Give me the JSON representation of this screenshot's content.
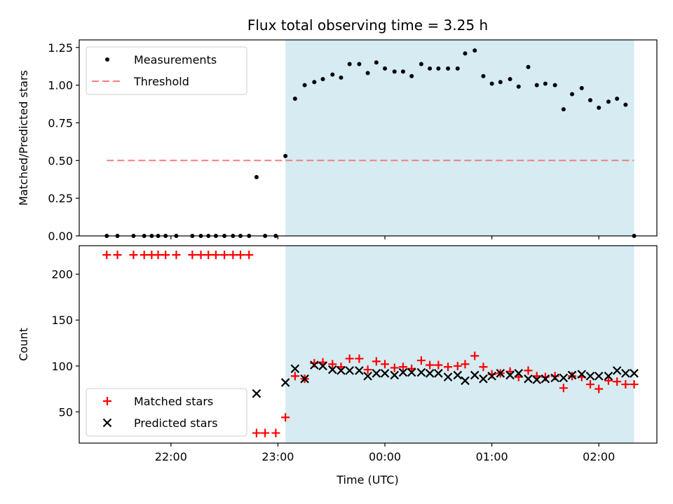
{
  "chart_data": {
    "title": "Flux total observing time = 3.25 h",
    "xlabel": "Time (UTC)",
    "x_unit": "hours since 00:00 UTC (negative = previous day)",
    "xlim": [
      -2.8575,
      2.5425
    ],
    "xticks": [
      -2.0,
      -1.0,
      0.0,
      1.0,
      2.0
    ],
    "xtick_labels": [
      "22:00",
      "23:00",
      "00:00",
      "01:00",
      "02:00"
    ],
    "shaded_interval": {
      "x": [
        -0.93,
        2.33
      ],
      "color": "#add8e6"
    },
    "panels": [
      {
        "type": "scatter",
        "ylabel": "Matched/Predicted stars",
        "ylim": [
          0,
          1.3
        ],
        "yticks": [
          0.0,
          0.25,
          0.5,
          0.75,
          1.0,
          1.25
        ],
        "ytick_labels": [
          "0.00",
          "0.25",
          "0.50",
          "0.75",
          "1.00",
          "1.25"
        ],
        "legend": {
          "location": "upper left",
          "entries": [
            "Measurements",
            "Threshold"
          ]
        },
        "threshold": {
          "name": "Threshold",
          "value": 0.5,
          "x": [
            -2.6,
            2.33
          ],
          "color": "#f08080",
          "style": "dashed"
        },
        "series": [
          {
            "name": "Measurements",
            "marker": "dot",
            "color": "#000000",
            "x": [
              -2.6,
              -2.5,
              -2.35,
              -2.25,
              -2.18,
              -2.12,
              -2.05,
              -1.95,
              -1.8,
              -1.72,
              -1.65,
              -1.58,
              -1.5,
              -1.42,
              -1.35,
              -1.27,
              -1.2,
              -1.12,
              -1.02,
              -0.93,
              -0.84,
              -0.75,
              -0.66,
              -0.58,
              -0.49,
              -0.41,
              -0.33,
              -0.24,
              -0.16,
              -0.08,
              0.0,
              0.09,
              0.17,
              0.25,
              0.34,
              0.42,
              0.5,
              0.59,
              0.68,
              0.75,
              0.84,
              0.92,
              1.0,
              1.08,
              1.17,
              1.25,
              1.34,
              1.42,
              1.5,
              1.59,
              1.67,
              1.75,
              1.84,
              1.92,
              2.0,
              2.09,
              2.17,
              2.25,
              2.33
            ],
            "values": [
              0.0,
              0.0,
              0.0,
              0.0,
              0.0,
              0.0,
              0.0,
              0.0,
              0.0,
              0.0,
              0.0,
              0.0,
              0.0,
              0.0,
              0.0,
              0.0,
              0.39,
              0.0,
              0.0,
              0.53,
              0.91,
              1.0,
              1.02,
              1.04,
              1.07,
              1.05,
              1.14,
              1.14,
              1.08,
              1.15,
              1.11,
              1.09,
              1.09,
              1.06,
              1.14,
              1.11,
              1.11,
              1.11,
              1.11,
              1.21,
              1.23,
              1.06,
              1.01,
              1.02,
              1.04,
              0.99,
              1.12,
              1.0,
              1.01,
              1.0,
              0.84,
              0.94,
              0.98,
              0.9,
              0.85,
              0.89,
              0.91,
              0.87,
              0.0
            ]
          }
        ]
      },
      {
        "type": "scatter",
        "ylabel": "Count",
        "ylim": [
          16,
          231
        ],
        "yticks": [
          50,
          100,
          150,
          200
        ],
        "ytick_labels": [
          "50",
          "100",
          "150",
          "200"
        ],
        "legend": {
          "location": "lower left",
          "entries": [
            "Matched stars",
            "Predicted stars"
          ]
        },
        "series": [
          {
            "name": "Matched stars",
            "marker": "plus",
            "color": "#ff0000",
            "x": [
              -2.6,
              -2.5,
              -2.35,
              -2.25,
              -2.18,
              -2.12,
              -2.05,
              -1.95,
              -1.8,
              -1.72,
              -1.65,
              -1.58,
              -1.5,
              -1.42,
              -1.35,
              -1.27,
              -1.2,
              -1.12,
              -1.02,
              -0.93,
              -0.84,
              -0.75,
              -0.66,
              -0.58,
              -0.49,
              -0.41,
              -0.33,
              -0.24,
              -0.16,
              -0.08,
              0.0,
              0.09,
              0.17,
              0.25,
              0.34,
              0.42,
              0.5,
              0.59,
              0.68,
              0.75,
              0.84,
              0.92,
              1.0,
              1.08,
              1.17,
              1.25,
              1.34,
              1.42,
              1.5,
              1.59,
              1.67,
              1.75,
              1.84,
              1.92,
              2.0,
              2.09,
              2.17,
              2.25,
              2.33
            ],
            "values": [
              221,
              221,
              221,
              221,
              221,
              221,
              221,
              221,
              221,
              221,
              221,
              221,
              221,
              221,
              221,
              221,
              27,
              27,
              27,
              44,
              89,
              86,
              103,
              104,
              102,
              99,
              108,
              108,
              96,
              105,
              102,
              98,
              99,
              97,
              106,
              101,
              101,
              99,
              100,
              102,
              111,
              99,
              91,
              92,
              94,
              88,
              95,
              89,
              88,
              89,
              76,
              89,
              88,
              80,
              75,
              84,
              83,
              80,
              80
            ]
          },
          {
            "name": "Predicted stars",
            "marker": "cross",
            "color": "#000000",
            "x": [
              -1.2,
              -0.93,
              -0.84,
              -0.75,
              -0.66,
              -0.58,
              -0.49,
              -0.41,
              -0.33,
              -0.24,
              -0.16,
              -0.08,
              0.0,
              0.09,
              0.17,
              0.25,
              0.34,
              0.42,
              0.5,
              0.59,
              0.68,
              0.75,
              0.84,
              0.92,
              1.0,
              1.08,
              1.17,
              1.25,
              1.34,
              1.42,
              1.5,
              1.59,
              1.67,
              1.75,
              1.84,
              1.92,
              2.0,
              2.09,
              2.17,
              2.25,
              2.33
            ],
            "values": [
              70,
              82,
              97,
              86,
              101,
              100,
              96,
              95,
              95,
              95,
              89,
              92,
              92,
              90,
              93,
              93,
              93,
              92,
              92,
              88,
              90,
              84,
              90,
              86,
              89,
              92,
              90,
              92,
              86,
              85,
              86,
              87,
              87,
              90,
              91,
              89,
              89,
              89,
              95,
              92,
              92
            ]
          }
        ]
      }
    ]
  }
}
